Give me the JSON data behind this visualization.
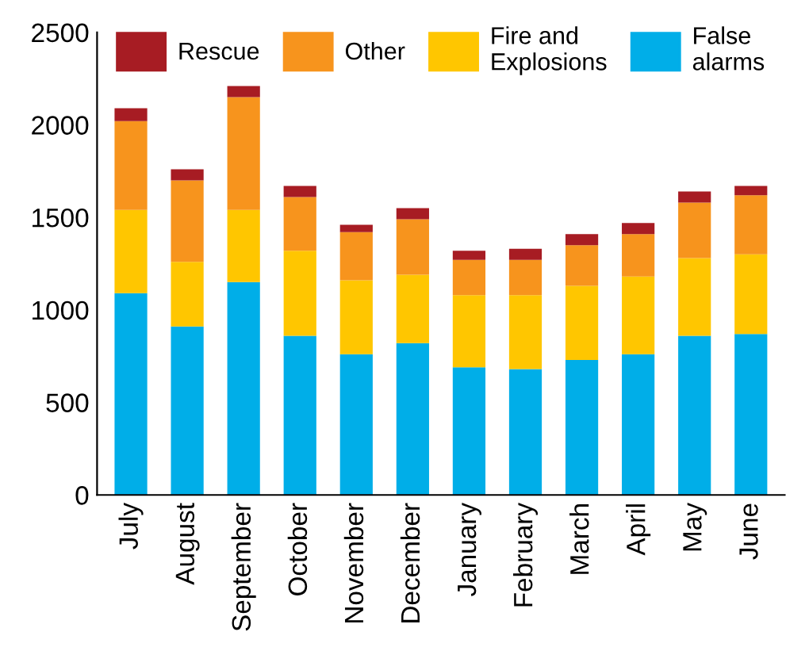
{
  "chart_data": {
    "type": "bar",
    "stacked": true,
    "categories": [
      "July",
      "August",
      "September",
      "October",
      "November",
      "December",
      "January",
      "February",
      "March",
      "April",
      "May",
      "June"
    ],
    "series": [
      {
        "name": "False\nalarms",
        "color": "#00aee8",
        "values": [
          1090,
          910,
          1150,
          860,
          760,
          820,
          690,
          680,
          730,
          760,
          860,
          870
        ]
      },
      {
        "name": "Fire and\nExplosions",
        "color": "#ffc600",
        "values": [
          450,
          350,
          390,
          460,
          400,
          370,
          390,
          400,
          400,
          420,
          420,
          430
        ]
      },
      {
        "name": "Other",
        "color": "#f7941d",
        "values": [
          480,
          440,
          610,
          290,
          260,
          300,
          190,
          190,
          220,
          230,
          300,
          320
        ]
      },
      {
        "name": "Rescue",
        "color": "#a71c23",
        "values": [
          70,
          60,
          60,
          60,
          40,
          60,
          50,
          60,
          60,
          60,
          60,
          50
        ]
      }
    ],
    "ylim": [
      0,
      2500
    ],
    "yticks": [
      0,
      500,
      1000,
      1500,
      2000,
      2500
    ],
    "grid": false,
    "legend": "top"
  }
}
